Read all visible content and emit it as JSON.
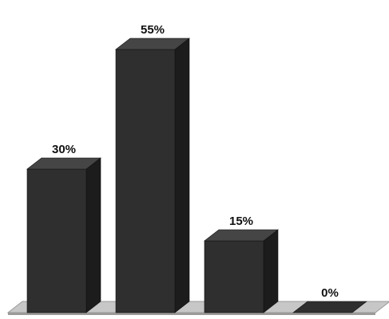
{
  "chart_data": {
    "type": "bar",
    "categories": [
      "",
      "",
      "",
      ""
    ],
    "values": [
      30,
      55,
      15,
      0
    ],
    "data_labels": [
      "30%",
      "55%",
      "15%",
      "0%"
    ],
    "title": "",
    "xlabel": "",
    "ylabel": "",
    "ylim": [
      0,
      60
    ],
    "grid": false,
    "legend": "none",
    "style": "3d"
  },
  "colors": {
    "bar_front": "#2f2f2f",
    "bar_top": "#454545",
    "bar_side": "#1c1c1c",
    "floor": "#c7c7c7",
    "floor_edge": "#9a9a9a"
  }
}
